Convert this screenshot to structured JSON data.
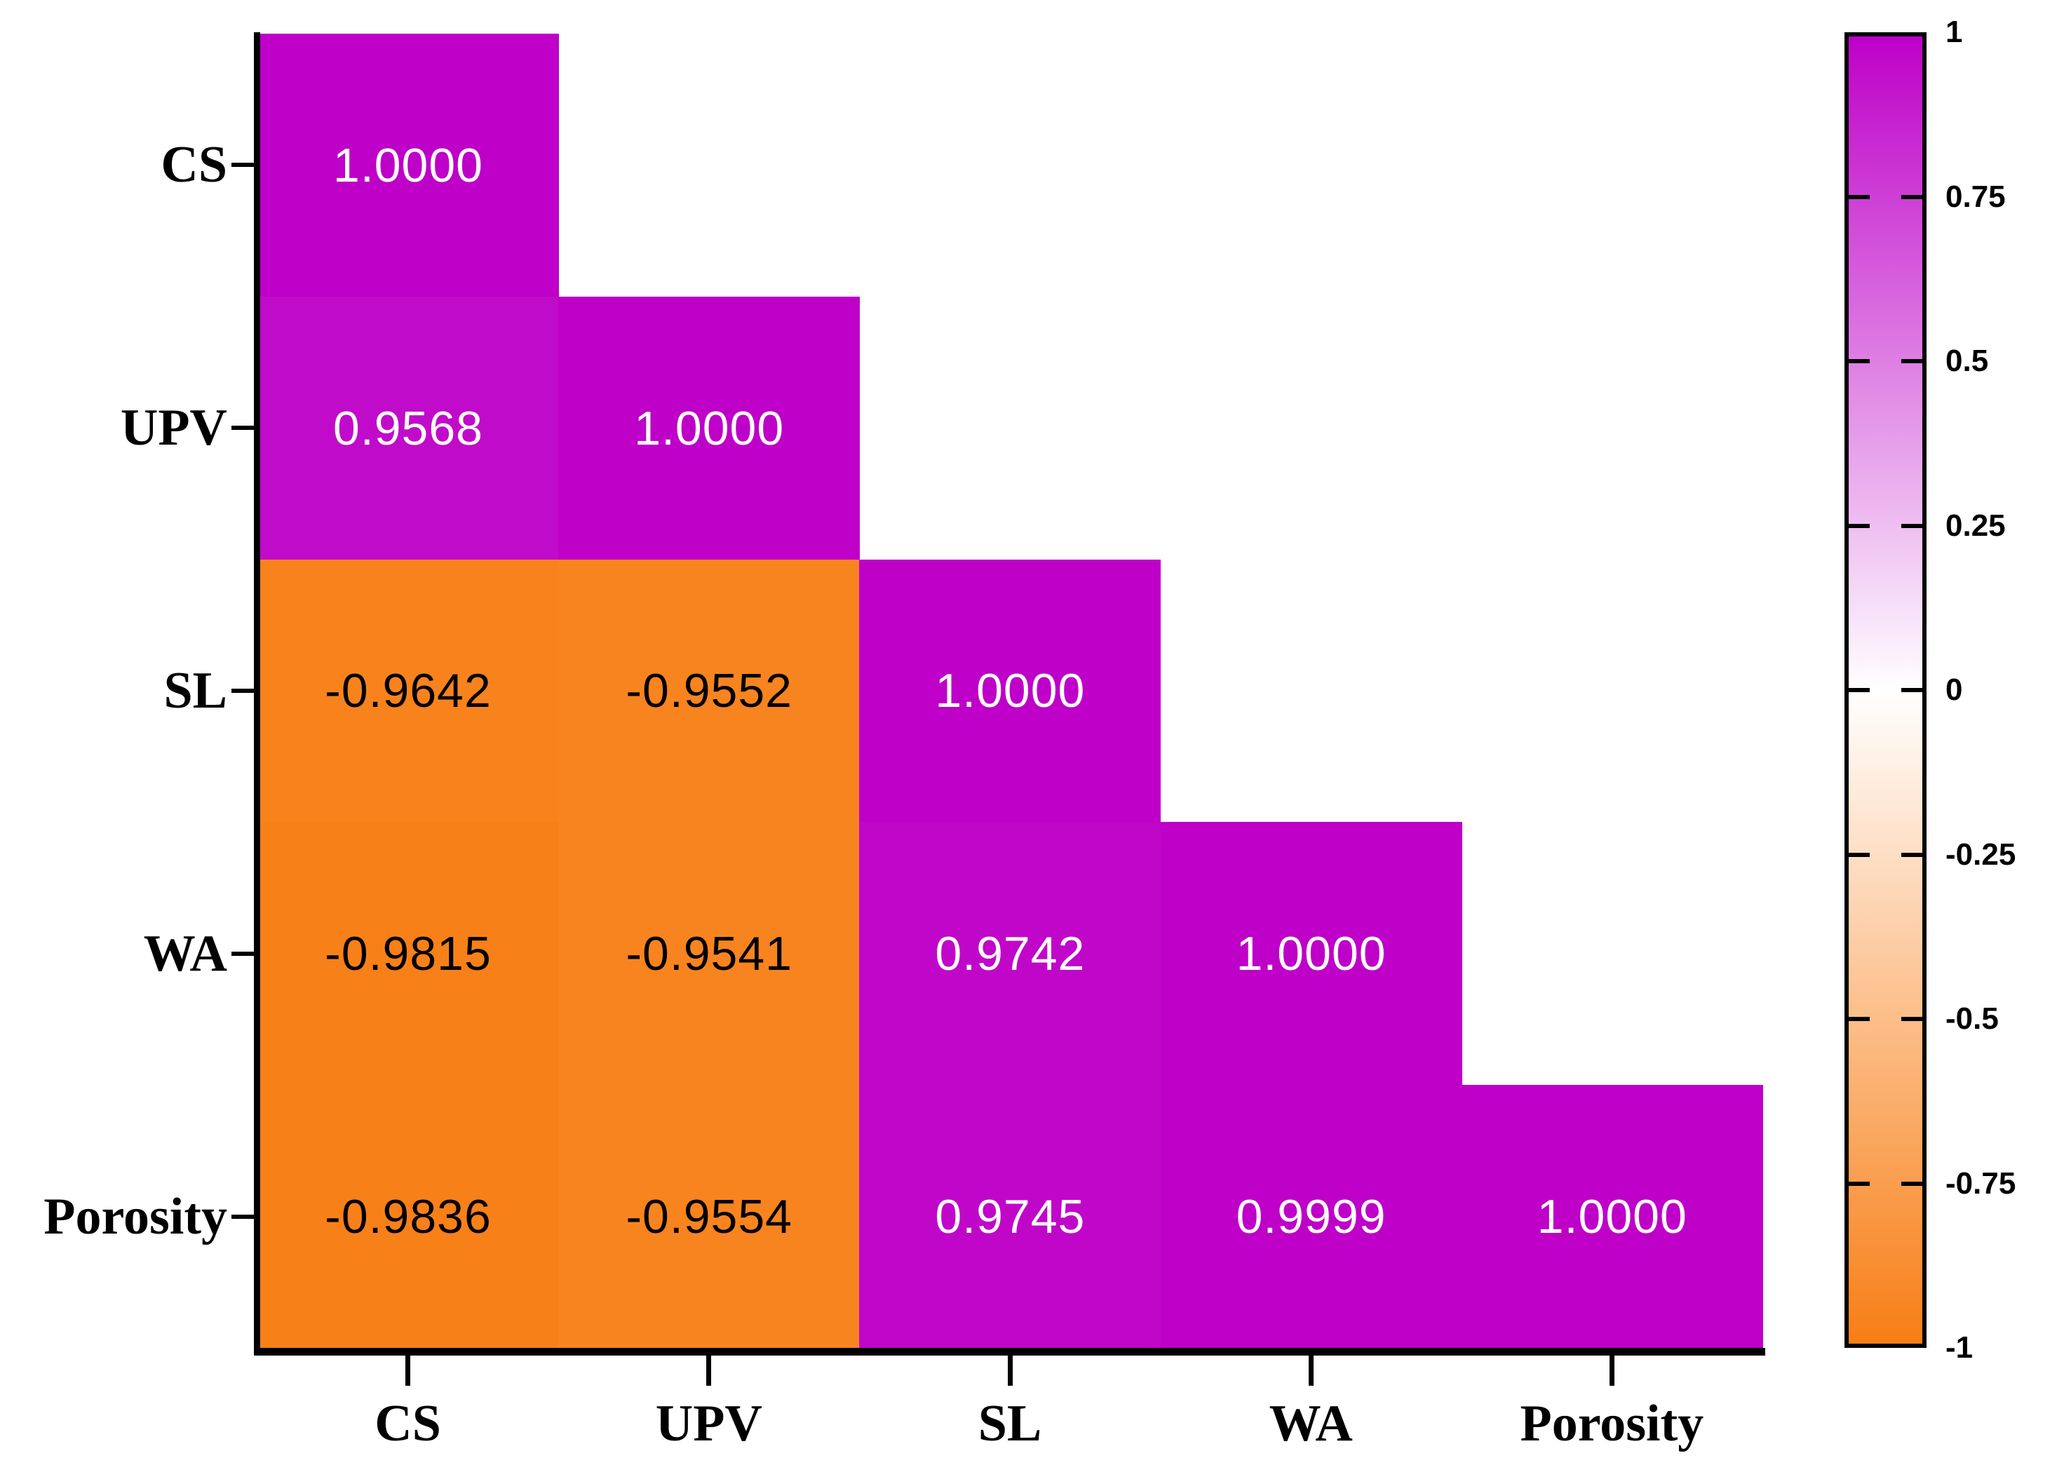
{
  "figure": {
    "background_color": "#FFFFFF"
  },
  "chart_data": {
    "type": "heatmap",
    "title": "",
    "subtitle": "",
    "variables": [
      "CS",
      "UPV",
      "SL",
      "WA",
      "Porosity"
    ],
    "x_tick_labels": [
      "CS",
      "UPV",
      "SL",
      "WA",
      "Porosity"
    ],
    "y_tick_labels": [
      "CS",
      "UPV",
      "SL",
      "WA",
      "Porosity"
    ],
    "matrix_lower_triangle": [
      [
        1.0
      ],
      [
        0.9568,
        1.0
      ],
      [
        -0.9642,
        -0.9552,
        1.0
      ],
      [
        -0.9815,
        -0.9541,
        0.9742,
        1.0
      ],
      [
        -0.9836,
        -0.9554,
        0.9745,
        0.9999,
        1.0
      ]
    ],
    "value_decimals": 4,
    "value_range": [
      -1,
      1
    ],
    "grid": false,
    "colormap": {
      "positive_color": "#BE00C8",
      "zero_color": "#FFFFFF",
      "negative_color": "#F87E15"
    },
    "cell_text_color_positive": "#FFFFFF",
    "cell_text_color_negative": "#000000",
    "axis_color": "#000000",
    "colorbar": {
      "position": "right",
      "tick_labels": [
        "1",
        "0.75",
        "0.5",
        "0.25",
        "0",
        "-0.25",
        "-0.5",
        "-0.75",
        "-1"
      ],
      "tick_values": [
        1,
        0.75,
        0.5,
        0.25,
        0,
        -0.25,
        -0.5,
        -0.75,
        -1
      ]
    }
  }
}
